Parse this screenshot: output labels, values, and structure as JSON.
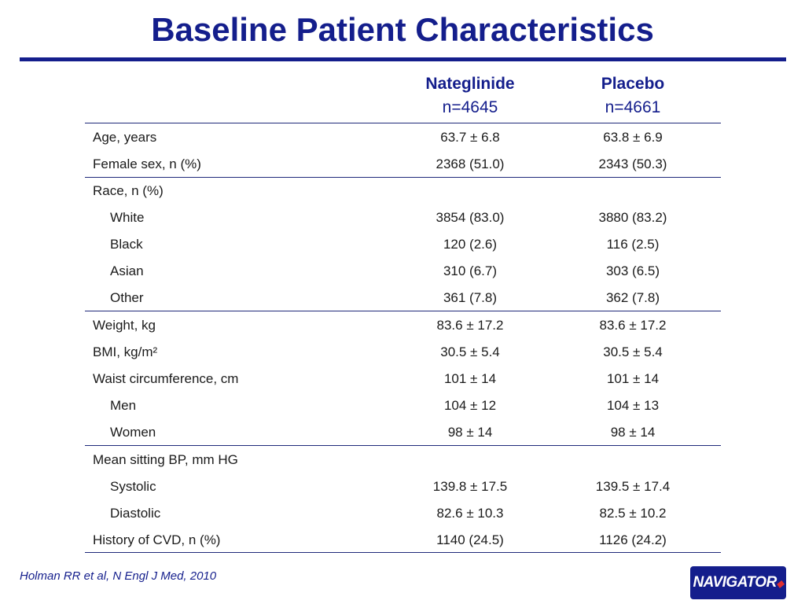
{
  "title": "Baseline Patient Characteristics",
  "columns": [
    {
      "name": "Nateglinide",
      "n": "n=4645"
    },
    {
      "name": "Placebo",
      "n": "n=4661"
    }
  ],
  "rows": [
    {
      "label": "Age, years",
      "nateglinide": "63.7 ± 6.8",
      "placebo": "63.8 ± 6.9"
    },
    {
      "label": "Female sex, n (%)",
      "nateglinide": "2368 (51.0)",
      "placebo": "2343 (50.3)"
    },
    {
      "label": "Race, n (%)",
      "nateglinide": "",
      "placebo": ""
    },
    {
      "label": "White",
      "nateglinide": "3854 (83.0)",
      "placebo": "3880 (83.2)"
    },
    {
      "label": "Black",
      "nateglinide": "120 (2.6)",
      "placebo": "116 (2.5)"
    },
    {
      "label": "Asian",
      "nateglinide": "310 (6.7)",
      "placebo": "303 (6.5)"
    },
    {
      "label": "Other",
      "nateglinide": "361 (7.8)",
      "placebo": "362 (7.8)"
    },
    {
      "label": "Weight, kg",
      "nateglinide": "83.6 ± 17.2",
      "placebo": "83.6 ± 17.2"
    },
    {
      "label": "BMI, kg/m²",
      "nateglinide": "30.5 ± 5.4",
      "placebo": "30.5 ± 5.4"
    },
    {
      "label": "Waist circumference, cm",
      "nateglinide": "101 ± 14",
      "placebo": "101 ± 14"
    },
    {
      "label": "Men",
      "nateglinide": "104 ± 12",
      "placebo": "104 ± 13"
    },
    {
      "label": "Women",
      "nateglinide": "98 ± 14",
      "placebo": "98 ± 14"
    },
    {
      "label": "Mean sitting BP, mm HG",
      "nateglinide": "",
      "placebo": ""
    },
    {
      "label": "Systolic",
      "nateglinide": "139.8 ± 17.5",
      "placebo": "139.5 ± 17.4"
    },
    {
      "label": "Diastolic",
      "nateglinide": "82.6 ± 10.3",
      "placebo": "82.5 ± 10.2"
    },
    {
      "label": "History of  CVD, n (%)",
      "nateglinide": "1140 (24.5)",
      "placebo": "1126 (24.2)"
    }
  ],
  "citation": "Holman RR et al, N Engl J Med, 2010",
  "logo": "NAVIGATOR",
  "colors": {
    "title": "#141e8c",
    "rule": "#141e8c"
  }
}
